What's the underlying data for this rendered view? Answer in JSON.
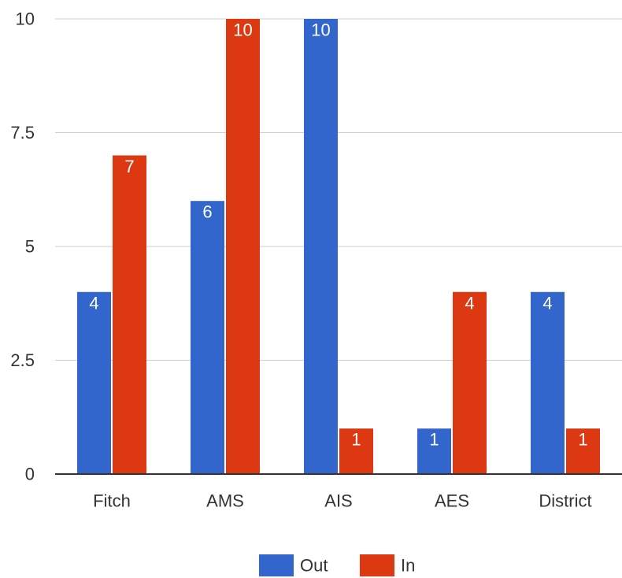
{
  "chart_data": {
    "type": "bar",
    "categories": [
      "Fitch",
      "AMS",
      "AIS",
      "AES",
      "District"
    ],
    "series": [
      {
        "name": "Out",
        "values": [
          4,
          6,
          10,
          1,
          4
        ],
        "color": "#3366cc"
      },
      {
        "name": "In",
        "values": [
          7,
          10,
          1,
          4,
          1
        ],
        "color": "#dc3912"
      }
    ],
    "title": "",
    "xlabel": "",
    "ylabel": "",
    "ylim": [
      0,
      10
    ],
    "yticks": [
      0,
      2.5,
      5,
      7.5,
      10
    ],
    "ytick_labels": [
      "0",
      "2.5",
      "5",
      "7.5",
      "10"
    ],
    "grid": true,
    "legend_position": "bottom",
    "data_labels": true
  },
  "colors": {
    "grid": "#cccccc",
    "axis": "#333333",
    "label_text": "#333333",
    "bar_label_text": "#ffffff"
  }
}
